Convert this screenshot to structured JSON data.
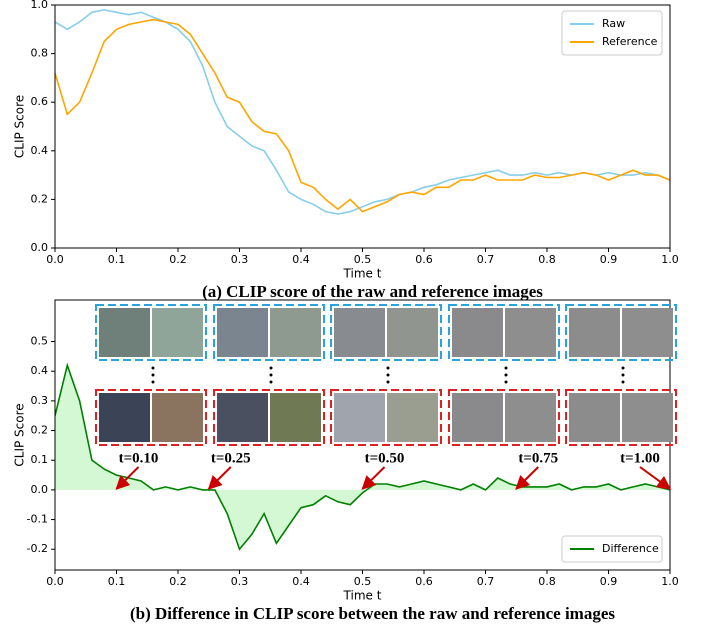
{
  "chart_data": [
    {
      "type": "line",
      "caption": "(a) CLIP score of the raw and reference images",
      "xlabel": "Time t",
      "ylabel": "CLIP Score",
      "x": [
        0,
        0.02,
        0.04,
        0.06,
        0.08,
        0.1,
        0.12,
        0.14,
        0.16,
        0.18,
        0.2,
        0.22,
        0.24,
        0.26,
        0.28,
        0.3,
        0.32,
        0.34,
        0.36,
        0.38,
        0.4,
        0.42,
        0.44,
        0.46,
        0.48,
        0.5,
        0.52,
        0.54,
        0.56,
        0.58,
        0.6,
        0.62,
        0.64,
        0.66,
        0.68,
        0.7,
        0.72,
        0.74,
        0.76,
        0.78,
        0.8,
        0.82,
        0.84,
        0.86,
        0.88,
        0.9,
        0.92,
        0.94,
        0.96,
        0.98,
        1.0
      ],
      "series": [
        {
          "name": "Raw",
          "color": "#87ceeb",
          "values": [
            0.93,
            0.9,
            0.93,
            0.97,
            0.98,
            0.97,
            0.96,
            0.97,
            0.95,
            0.93,
            0.9,
            0.85,
            0.75,
            0.6,
            0.5,
            0.46,
            0.42,
            0.4,
            0.32,
            0.23,
            0.2,
            0.18,
            0.15,
            0.14,
            0.15,
            0.17,
            0.19,
            0.2,
            0.22,
            0.23,
            0.25,
            0.26,
            0.28,
            0.29,
            0.3,
            0.31,
            0.32,
            0.3,
            0.3,
            0.31,
            0.3,
            0.31,
            0.3,
            0.31,
            0.3,
            0.31,
            0.3,
            0.3,
            0.31,
            0.3,
            0.28
          ]
        },
        {
          "name": "Reference",
          "color": "#ffa500",
          "values": [
            0.72,
            0.55,
            0.6,
            0.72,
            0.85,
            0.9,
            0.92,
            0.93,
            0.94,
            0.93,
            0.92,
            0.88,
            0.8,
            0.72,
            0.62,
            0.6,
            0.52,
            0.48,
            0.47,
            0.4,
            0.27,
            0.25,
            0.2,
            0.16,
            0.2,
            0.15,
            0.17,
            0.19,
            0.22,
            0.23,
            0.22,
            0.25,
            0.25,
            0.28,
            0.28,
            0.3,
            0.28,
            0.28,
            0.28,
            0.3,
            0.29,
            0.29,
            0.3,
            0.31,
            0.3,
            0.28,
            0.3,
            0.32,
            0.3,
            0.3,
            0.28
          ]
        }
      ],
      "xlim": [
        0,
        1
      ],
      "ylim": [
        0,
        1
      ],
      "xticks": [
        {
          "value": 0,
          "label": "0.0"
        },
        0.1,
        0.2,
        0.3,
        0.4,
        0.5,
        0.6,
        0.7,
        0.8,
        0.9,
        {
          "value": 1,
          "label": "1.0"
        }
      ],
      "yticks": [
        {
          "value": 0,
          "label": "0.0"
        },
        0.2,
        0.4,
        0.6,
        0.8,
        {
          "value": 1,
          "label": "1.0"
        }
      ],
      "legend": "upper right"
    },
    {
      "type": "line",
      "caption": "(b) Difference in CLIP score between the raw and reference images",
      "xlabel": "Time t",
      "ylabel": "CLIP Score",
      "x": [
        0,
        0.02,
        0.04,
        0.06,
        0.08,
        0.1,
        0.12,
        0.14,
        0.16,
        0.18,
        0.2,
        0.22,
        0.24,
        0.26,
        0.28,
        0.3,
        0.32,
        0.34,
        0.36,
        0.38,
        0.4,
        0.42,
        0.44,
        0.46,
        0.48,
        0.5,
        0.52,
        0.54,
        0.56,
        0.58,
        0.6,
        0.62,
        0.64,
        0.66,
        0.68,
        0.7,
        0.72,
        0.74,
        0.76,
        0.78,
        0.8,
        0.82,
        0.84,
        0.86,
        0.88,
        0.9,
        0.92,
        0.94,
        0.96,
        0.98,
        1.0
      ],
      "series": [
        {
          "name": "Difference",
          "color": "#008000",
          "fill": "#90ee90",
          "values": [
            0.25,
            0.42,
            0.3,
            0.1,
            0.07,
            0.05,
            0.04,
            0.03,
            0.0,
            0.01,
            0.0,
            0.01,
            0.0,
            0.0,
            -0.08,
            -0.2,
            -0.15,
            -0.08,
            -0.18,
            -0.12,
            -0.06,
            -0.05,
            -0.02,
            -0.04,
            -0.05,
            -0.01,
            0.02,
            0.02,
            0.01,
            0.02,
            0.03,
            0.02,
            0.01,
            0.0,
            0.02,
            0.0,
            0.04,
            0.02,
            0.01,
            0.01,
            0.01,
            0.02,
            0.0,
            0.01,
            0.01,
            0.02,
            0.0,
            0.01,
            0.02,
            0.01,
            0.0
          ]
        }
      ],
      "xlim": [
        0,
        1
      ],
      "ylim": [
        -0.27,
        0.64
      ],
      "xticks": [
        {
          "value": 0,
          "label": "0.0"
        },
        0.1,
        0.2,
        0.3,
        0.4,
        0.5,
        0.6,
        0.7,
        0.8,
        0.9,
        {
          "value": 1,
          "label": "1.0"
        }
      ],
      "yticks": [
        -0.2,
        -0.1,
        {
          "value": 0,
          "label": "0.0"
        },
        0.1,
        0.2,
        0.3,
        0.4,
        0.5
      ],
      "legend": "lower right",
      "annotations": [
        {
          "text": "t=0.10",
          "x": 0.1
        },
        {
          "text": "t=0.25",
          "x": 0.25
        },
        {
          "text": "t=0.50",
          "x": 0.5
        },
        {
          "text": "t=0.75",
          "x": 0.75
        },
        {
          "text": "t=1.00",
          "x": 1
        }
      ]
    }
  ]
}
